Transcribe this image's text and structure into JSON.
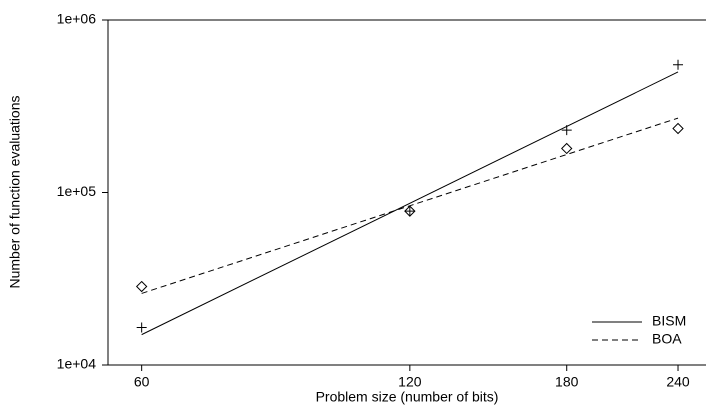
{
  "chart_data": {
    "type": "scatter",
    "x_label": "Problem size (number of bits)",
    "y_label": "Number of function evaluations",
    "x_log": true,
    "y_log": true,
    "xlim": [
      55,
      258
    ],
    "xticks": [
      60,
      120,
      180,
      240
    ],
    "ylim": [
      10000,
      1000000
    ],
    "yticks": [
      {
        "value": 10000,
        "label": "1e+04"
      },
      {
        "value": 100000,
        "label": "1e+05"
      },
      {
        "value": 1000000,
        "label": "1e+06"
      }
    ],
    "x": [
      60,
      120,
      180,
      240
    ],
    "fit_x": [
      60,
      240
    ],
    "legend": "lower right",
    "series": [
      {
        "name": "BISM",
        "color": "#000000",
        "marker": "plus",
        "dash": false,
        "values": [
          16500,
          78000,
          230000,
          550000
        ],
        "fit_values": [
          15000,
          500000
        ]
      },
      {
        "name": "BOA",
        "color": "#000000",
        "marker": "diamond",
        "dash": true,
        "values": [
          28500,
          78000,
          180000,
          235000
        ],
        "fit_values": [
          26000,
          270000
        ]
      }
    ]
  }
}
